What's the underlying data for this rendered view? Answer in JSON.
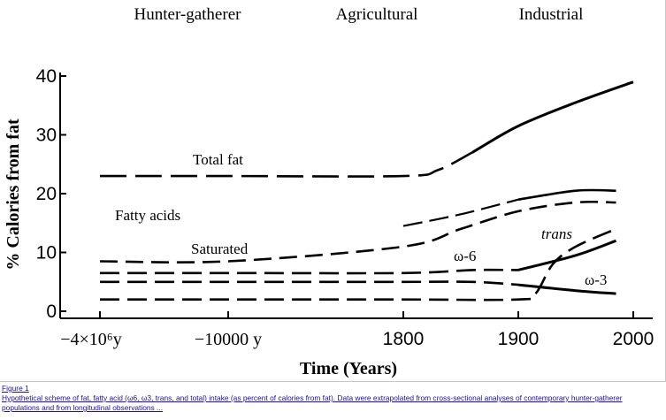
{
  "chart_data": {
    "type": "line",
    "title": "",
    "xlabel": "Time (Years)",
    "ylabel": "% Calories from fat",
    "ylim": [
      0,
      40
    ],
    "yticks": [
      0,
      10,
      20,
      30,
      40
    ],
    "x_tick_labels": [
      "−4×10⁶y",
      "−10000 y",
      "1800",
      "1900",
      "2000"
    ],
    "eras": [
      "Hunter-gatherer",
      "Agricultural",
      "Industrial"
    ],
    "group_label": "Fatty acids",
    "grid": false,
    "series": [
      {
        "name": "Total fat",
        "points": [
          [
            "−4×10⁶y",
            23
          ],
          [
            "−10000 y",
            23
          ],
          [
            "1800",
            23
          ],
          [
            1830,
            24
          ],
          [
            1860,
            27
          ],
          [
            1900,
            31.5
          ],
          [
            1950,
            35.5
          ],
          [
            2000,
            39
          ]
        ]
      },
      {
        "name": "",
        "points": [
          [
            "−4×10⁶y",
            23
          ],
          [
            1800,
            14.5
          ],
          [
            1850,
            16.5
          ],
          [
            1900,
            19
          ],
          [
            1950,
            20.5
          ],
          [
            1985,
            20.5
          ]
        ]
      },
      {
        "name": "Saturated",
        "points": [
          [
            "−4×10⁶y",
            8.5
          ],
          [
            "−10000 y",
            8.5
          ],
          [
            1800,
            11
          ],
          [
            1850,
            14
          ],
          [
            1900,
            17
          ],
          [
            1950,
            18.5
          ],
          [
            1985,
            18.5
          ]
        ]
      },
      {
        "name": "ω-6",
        "points": [
          [
            "−4×10⁶y",
            6.5
          ],
          [
            "−10000 y",
            6.5
          ],
          [
            1800,
            6.5
          ],
          [
            1860,
            7
          ],
          [
            1900,
            7
          ],
          [
            1950,
            9.5
          ],
          [
            1985,
            12
          ]
        ]
      },
      {
        "name": "ω-3",
        "points": [
          [
            "−4×10⁶y",
            5
          ],
          [
            "−10000 y",
            5
          ],
          [
            1800,
            5
          ],
          [
            1860,
            5
          ],
          [
            1900,
            4.5
          ],
          [
            1950,
            3.5
          ],
          [
            1985,
            3
          ]
        ]
      },
      {
        "name": "trans",
        "points": [
          [
            "−4×10⁶y",
            2
          ],
          [
            "−10000 y",
            2
          ],
          [
            1800,
            2
          ],
          [
            1900,
            2
          ],
          [
            1915,
            3
          ],
          [
            1930,
            8
          ],
          [
            1950,
            11
          ],
          [
            1985,
            14
          ]
        ]
      }
    ]
  },
  "caption": {
    "figure_label": "Figure 1",
    "text": "Hypothetical scheme of fat, fatty acid (ω6, ω3, trans, and total) intake (as percent of calories from fat). Data were extrapolated from cross-sectional analyses of contemporary hunter-gatherer populations and from longitudinal observations ..."
  }
}
